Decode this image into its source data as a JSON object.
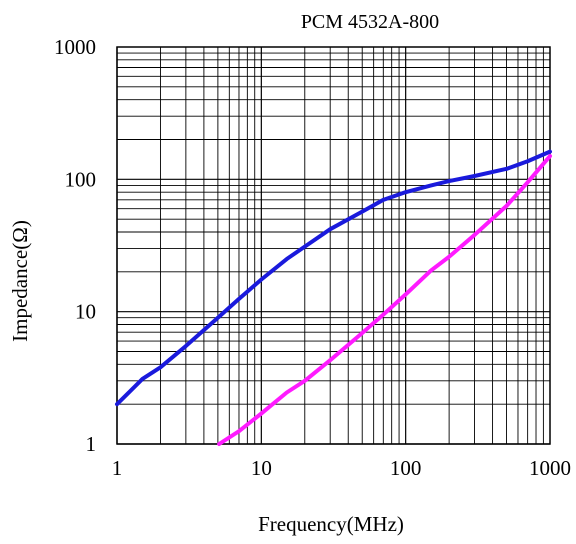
{
  "chart_data": {
    "type": "line",
    "title": "PCM 4532A-800",
    "xlabel": "Frequency(MHz)",
    "ylabel": "Impedance(Ω)",
    "x_scale": "log",
    "y_scale": "log",
    "xlim": [
      1,
      1000
    ],
    "ylim": [
      1,
      1000
    ],
    "x_ticks": [
      "1",
      "10",
      "100",
      "1000"
    ],
    "y_ticks": [
      "1",
      "10",
      "100",
      "1000"
    ],
    "grid": true,
    "series": [
      {
        "color": "#1a1adc",
        "x": [
          1,
          1.5,
          2,
          3,
          5,
          7,
          10,
          15,
          20,
          30,
          50,
          70,
          100,
          150,
          200,
          300,
          500,
          700,
          1000
        ],
        "y": [
          2,
          3.1,
          3.8,
          5.5,
          9,
          12.5,
          17.5,
          25,
          31,
          42,
          57,
          70,
          80,
          90,
          97,
          106,
          120,
          137,
          162
        ]
      },
      {
        "color": "#ff1aff",
        "x": [
          5.1,
          7,
          10,
          15,
          20,
          30,
          50,
          70,
          100,
          150,
          200,
          300,
          500,
          700,
          1000
        ],
        "y": [
          1,
          1.25,
          1.7,
          2.45,
          3.0,
          4.3,
          6.9,
          9.5,
          13.5,
          20.5,
          26,
          38,
          63,
          95,
          150
        ]
      }
    ]
  }
}
